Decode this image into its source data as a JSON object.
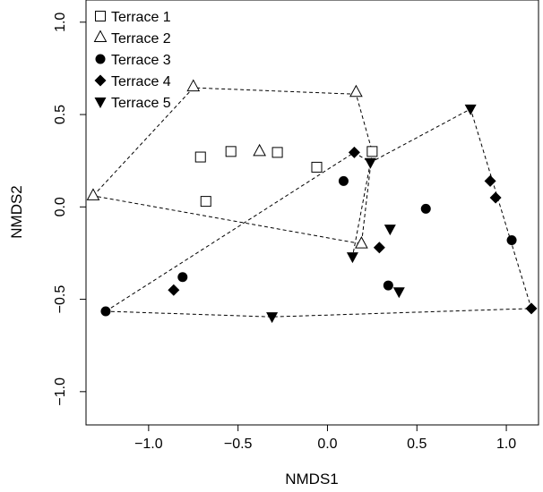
{
  "chart_data": {
    "type": "scatter",
    "title": "",
    "xlabel": "NMDS1",
    "ylabel": "NMDS2",
    "xlim": [
      -1.35,
      1.18
    ],
    "ylim": [
      -1.18,
      1.12
    ],
    "xticks": [
      -1.0,
      -0.5,
      0.0,
      0.5,
      1.0
    ],
    "xtick_labels": [
      "−1.0",
      "−0.5",
      "0.0",
      "0.5",
      "1.0"
    ],
    "yticks": [
      -1.0,
      -0.5,
      0.0,
      0.5,
      1.0
    ],
    "ytick_labels": [
      "−1.0",
      "−0.5",
      "0.0",
      "0.5",
      "1.0"
    ],
    "grid": false,
    "legend_position": "top-left",
    "series": [
      {
        "name": "Terrace 1",
        "marker": "open-square",
        "points": [
          [
            -0.71,
            0.27
          ],
          [
            -0.54,
            0.3
          ],
          [
            -0.28,
            0.295
          ],
          [
            -0.06,
            0.215
          ],
          [
            0.25,
            0.3
          ],
          [
            -0.68,
            0.03
          ]
        ],
        "hull": []
      },
      {
        "name": "Terrace 2",
        "marker": "open-triangle-up",
        "points": [
          [
            -1.31,
            0.06
          ],
          [
            -0.75,
            0.65
          ],
          [
            0.16,
            0.62
          ],
          [
            -0.38,
            0.3
          ],
          [
            0.19,
            -0.2
          ]
        ],
        "hull": [
          [
            -1.31,
            0.06
          ],
          [
            -0.75,
            0.645
          ],
          [
            0.16,
            0.61
          ],
          [
            0.25,
            0.3
          ],
          [
            0.19,
            -0.2
          ]
        ]
      },
      {
        "name": "Terrace 3",
        "marker": "filled-circle",
        "points": [
          [
            -1.24,
            -0.565
          ],
          [
            -0.81,
            -0.38
          ],
          [
            0.09,
            0.14
          ],
          [
            0.55,
            -0.01
          ],
          [
            1.03,
            -0.18
          ],
          [
            0.34,
            -0.425
          ]
        ],
        "hull": []
      },
      {
        "name": "Terrace 4",
        "marker": "filled-diamond",
        "points": [
          [
            -0.86,
            -0.45
          ],
          [
            0.15,
            0.295
          ],
          [
            0.29,
            -0.22
          ],
          [
            0.91,
            0.14
          ],
          [
            0.94,
            0.05
          ],
          [
            1.14,
            -0.55
          ]
        ],
        "hull": [
          [
            -1.24,
            -0.565
          ],
          [
            0.15,
            0.295
          ],
          [
            0.24,
            0.24
          ],
          [
            0.8,
            0.53
          ],
          [
            1.14,
            -0.55
          ],
          [
            -0.31,
            -0.595
          ]
        ]
      },
      {
        "name": "Terrace 5",
        "marker": "filled-triangle-down",
        "points": [
          [
            0.8,
            0.53
          ],
          [
            0.24,
            0.24
          ],
          [
            0.35,
            -0.12
          ],
          [
            0.14,
            -0.27
          ],
          [
            0.4,
            -0.46
          ],
          [
            -0.31,
            -0.595
          ]
        ],
        "hull": [
          [
            0.24,
            0.24
          ],
          [
            0.14,
            -0.27
          ]
        ]
      }
    ]
  }
}
